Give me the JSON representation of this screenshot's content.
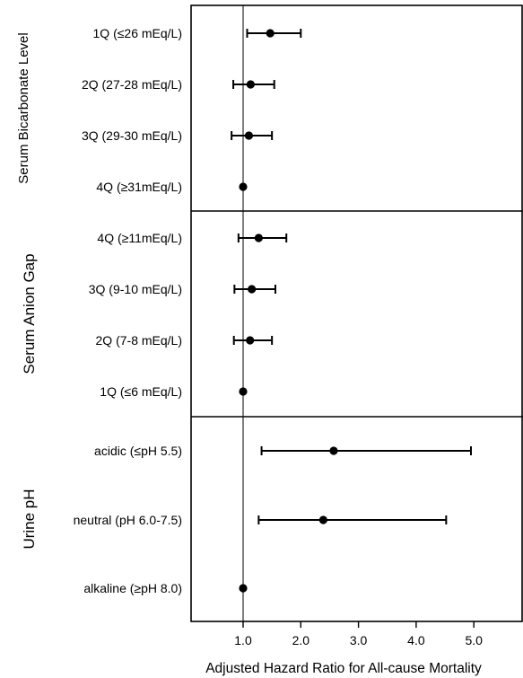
{
  "chart_data": {
    "type": "forest",
    "xlabel": "Adjusted Hazard Ratio for All-cause Mortality",
    "xlim": [
      0.1,
      5.3
    ],
    "xticks": [
      "1.0",
      "2.0",
      "3.0",
      "4.0",
      "5.0"
    ],
    "xtick_values": [
      1.0,
      2.0,
      3.0,
      4.0,
      5.0
    ],
    "reference_line": 1.0,
    "groups": [
      {
        "label": "Serum Bicarbonate Level",
        "rows": [
          {
            "label": "1Q (≤26 mEq/L)",
            "hr": 1.47,
            "lo": 1.07,
            "hi": 2.0
          },
          {
            "label": "2Q (27-28 mEq/L)",
            "hr": 1.13,
            "lo": 0.83,
            "hi": 1.54
          },
          {
            "label": "3Q (29-30 mEq/L)",
            "hr": 1.1,
            "lo": 0.8,
            "hi": 1.5
          },
          {
            "label": "4Q (≥31mEq/L)",
            "hr": 1.0,
            "lo": null,
            "hi": null
          }
        ]
      },
      {
        "label": "Serum Anion Gap",
        "rows": [
          {
            "label": "4Q (≥11mEq/L)",
            "hr": 1.27,
            "lo": 0.92,
            "hi": 1.75
          },
          {
            "label": "3Q (9-10 mEq/L)",
            "hr": 1.15,
            "lo": 0.85,
            "hi": 1.56
          },
          {
            "label": "2Q (7-8 mEq/L)",
            "hr": 1.12,
            "lo": 0.84,
            "hi": 1.5
          },
          {
            "label": "1Q (≤6 mEq/L)",
            "hr": 1.0,
            "lo": null,
            "hi": null
          }
        ]
      },
      {
        "label": "Urine pH",
        "rows": [
          {
            "label": "acidic (≤pH 5.5)",
            "hr": 2.57,
            "lo": 1.32,
            "hi": 4.95
          },
          {
            "label": "neutral (pH 6.0-7.5)",
            "hr": 2.39,
            "lo": 1.27,
            "hi": 4.52
          },
          {
            "label": "alkaline (≥pH 8.0)",
            "hr": 1.0,
            "lo": null,
            "hi": null
          }
        ]
      }
    ]
  }
}
